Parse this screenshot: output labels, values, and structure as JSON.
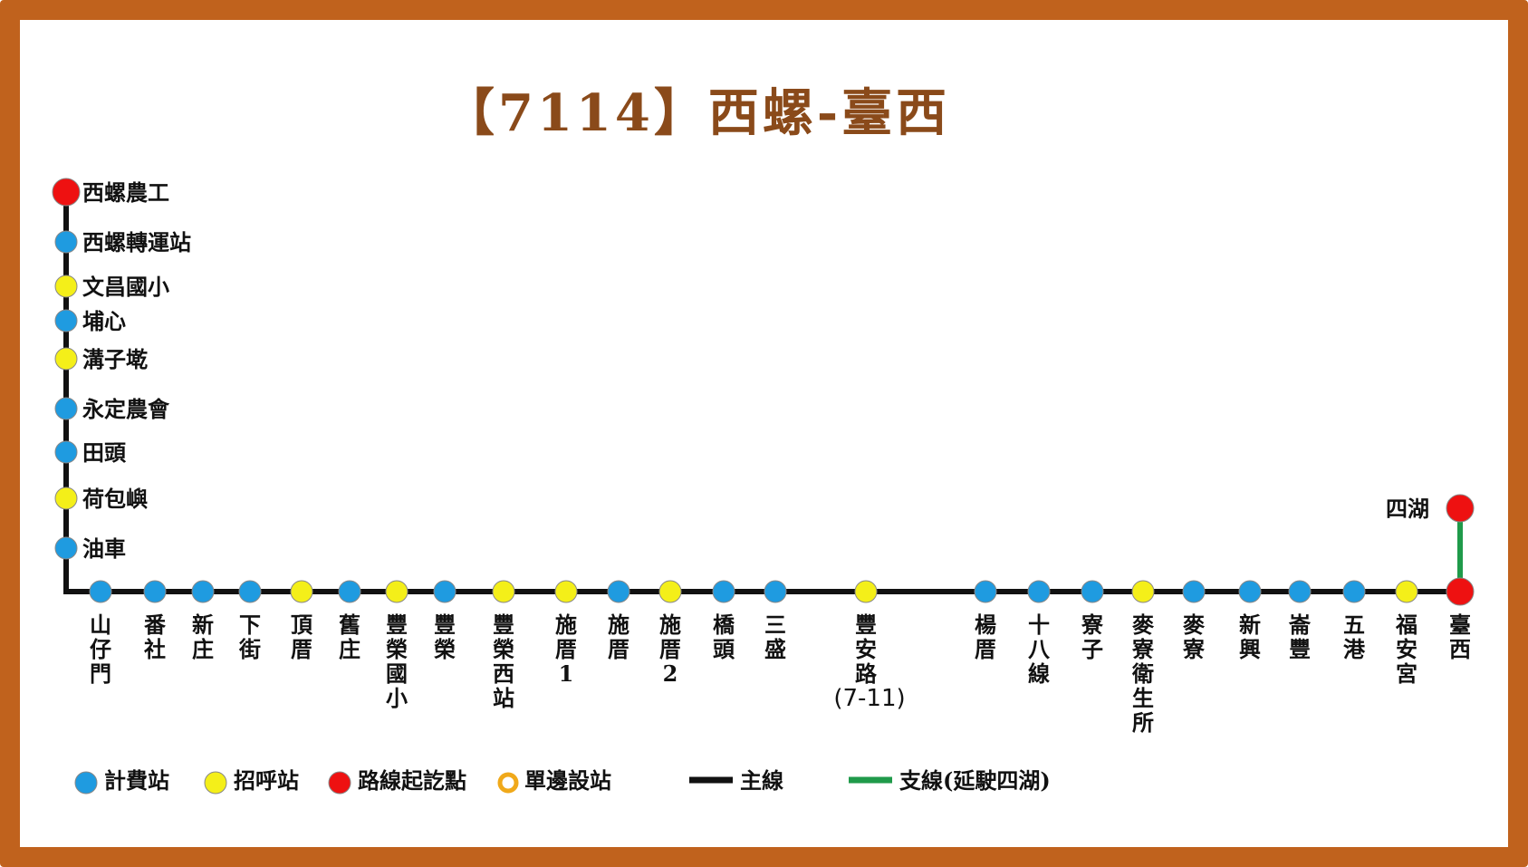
{
  "title": "【7114】西螺-臺西",
  "colors": {
    "fare": "#1f9be0",
    "flag": "#f4ef19",
    "terminal": "#ee1111",
    "main_line": "#111111",
    "branch_line": "#1f9a4a",
    "frame": "#c0621d",
    "title": "#8a4a1a"
  },
  "vertical_stops": [
    {
      "name": "西螺農工",
      "type": "terminal"
    },
    {
      "name": "西螺轉運站",
      "type": "fare"
    },
    {
      "name": "文昌國小",
      "type": "flag"
    },
    {
      "name": "埔心",
      "type": "fare"
    },
    {
      "name": "溝子墘",
      "type": "flag"
    },
    {
      "name": "永定農會",
      "type": "fare"
    },
    {
      "name": "田頭",
      "type": "fare"
    },
    {
      "name": "荷包嶼",
      "type": "flag"
    },
    {
      "name": "油車",
      "type": "fare"
    }
  ],
  "horizontal_stops": [
    {
      "name": "山仔門",
      "type": "fare"
    },
    {
      "name": "番社",
      "type": "fare"
    },
    {
      "name": "新庄",
      "type": "fare"
    },
    {
      "name": "下街",
      "type": "fare"
    },
    {
      "name": "頂厝",
      "type": "flag"
    },
    {
      "name": "舊庄",
      "type": "fare"
    },
    {
      "name": "豐榮國小",
      "type": "flag"
    },
    {
      "name": "豐榮",
      "type": "fare"
    },
    {
      "name": "豐榮西站",
      "type": "flag"
    },
    {
      "name": "施厝1",
      "type": "flag"
    },
    {
      "name": "施厝",
      "type": "fare"
    },
    {
      "name": "施厝2",
      "type": "flag"
    },
    {
      "name": "橋頭",
      "type": "fare"
    },
    {
      "name": "三盛",
      "type": "fare"
    },
    {
      "name": "豐安路",
      "type": "flag",
      "note": "(7-11)"
    },
    {
      "name": "楊厝",
      "type": "fare"
    },
    {
      "name": "十八線",
      "type": "fare"
    },
    {
      "name": "寮子",
      "type": "fare"
    },
    {
      "name": "麥寮衛生所",
      "type": "flag"
    },
    {
      "name": "麥寮",
      "type": "fare"
    },
    {
      "name": "新興",
      "type": "fare"
    },
    {
      "name": "崙豐",
      "type": "fare"
    },
    {
      "name": "五港",
      "type": "fare"
    },
    {
      "name": "福安宮",
      "type": "flag"
    },
    {
      "name": "臺西",
      "type": "terminal"
    }
  ],
  "branch_stop": {
    "name": "四湖",
    "type": "terminal"
  },
  "legend": [
    {
      "kind": "fare",
      "label": "計費站"
    },
    {
      "kind": "flag",
      "label": "招呼站"
    },
    {
      "kind": "terminal",
      "label": "路線起訖點"
    },
    {
      "kind": "oneway",
      "label": "單邊設站"
    },
    {
      "kind": "main",
      "label": "主線"
    },
    {
      "kind": "branch",
      "label": "支線(延駛四湖)"
    }
  ]
}
